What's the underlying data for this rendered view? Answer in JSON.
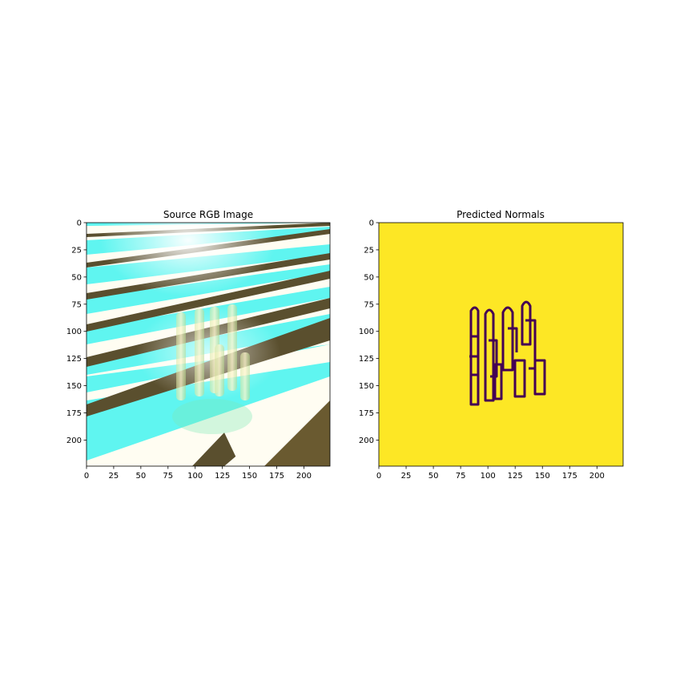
{
  "chart_data": [
    {
      "type": "image",
      "title": "Source RGB Image",
      "xlabel": "",
      "ylabel": "",
      "xlim": [
        0,
        224
      ],
      "ylim": [
        224,
        0
      ],
      "xticks": [
        0,
        25,
        50,
        75,
        100,
        125,
        150,
        175,
        200
      ],
      "yticks": [
        0,
        25,
        50,
        75,
        100,
        125,
        150,
        175,
        200
      ],
      "colors": {
        "cyan": "#5ff5f0",
        "dark_stripe": "#5a4f2e",
        "white": "#fffdf2",
        "highlight": "#fff2c8"
      }
    },
    {
      "type": "heatmap",
      "title": "Predicted Normals",
      "xlabel": "",
      "ylabel": "",
      "xlim": [
        0,
        224
      ],
      "ylim": [
        224,
        0
      ],
      "xticks": [
        0,
        25,
        50,
        75,
        100,
        125,
        150,
        175,
        200
      ],
      "yticks": [
        0,
        25,
        50,
        75,
        100,
        125,
        150,
        175,
        200
      ],
      "colormap": "viridis",
      "colors": {
        "background": "#fde725",
        "outline": "#440154"
      }
    }
  ]
}
